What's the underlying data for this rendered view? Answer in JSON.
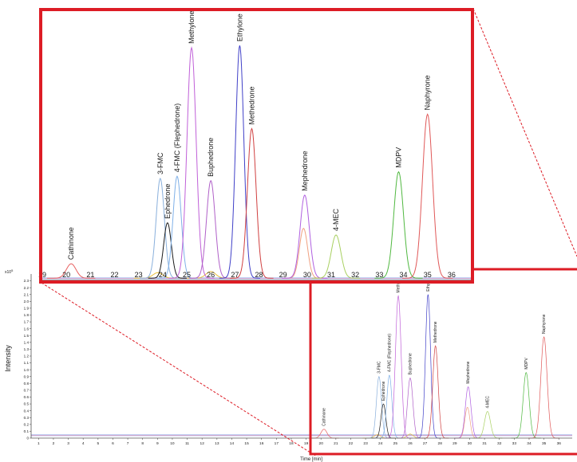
{
  "chart_data": {
    "type": "line",
    "chrom_chart": {
      "y_exponent_label": "x10",
      "y_exponent_power": "5",
      "ylabel": "Intensity",
      "xlabel": "Time [min]",
      "x_ticks": [
        "1",
        "2",
        "3",
        "4",
        "5",
        "6",
        "7",
        "8",
        "9",
        "10",
        "11",
        "12",
        "13",
        "14",
        "15",
        "16",
        "17",
        "18",
        "19",
        "20",
        "21",
        "22",
        "23",
        "24",
        "25",
        "26",
        "27",
        "28",
        "29",
        "30",
        "31",
        "32",
        "33",
        "34",
        "35",
        "36"
      ],
      "y_ticks": [
        "0",
        "0.1",
        "0.2",
        "0.3",
        "0.4",
        "0.5",
        "0.6",
        "0.7",
        "0.8",
        "0.9",
        "1.0",
        "1.1",
        "1.2",
        "1.3",
        "1.4",
        "1.5",
        "1.6",
        "1.7",
        "1.8",
        "1.9",
        "2.0",
        "2.1",
        "2.2",
        "2.3"
      ],
      "xlim": [
        0.5,
        36.9
      ],
      "ylim": [
        0,
        2.4
      ]
    },
    "zoom_chart": {
      "x_ticks": [
        "19",
        "20",
        "21",
        "22",
        "23",
        "24",
        "25",
        "26",
        "27",
        "28",
        "29",
        "30",
        "31",
        "32",
        "33",
        "34",
        "35",
        "36"
      ],
      "xlim": [
        19,
        36.8
      ]
    },
    "peaks": [
      {
        "label": "Cathinone",
        "rt": 20.2,
        "height": 0.13,
        "width": 0.2,
        "color": "#e86060"
      },
      {
        "label": "3-FMC",
        "rt": 23.9,
        "height": 0.9,
        "width": 0.17,
        "color": "#8ab0dc"
      },
      {
        "label": "Ephedrone",
        "rt": 24.2,
        "height": 0.5,
        "width": 0.16,
        "color": "#1a1a1a"
      },
      {
        "label": "4-FMC (Flephedrone)",
        "rt": 24.6,
        "height": 0.92,
        "width": 0.17,
        "color": "#7fb0e8"
      },
      {
        "label": "Methylone",
        "rt": 25.2,
        "height": 2.08,
        "width": 0.19,
        "color": "#c060d8"
      },
      {
        "label": "Buphedrone",
        "rt": 26.0,
        "height": 0.88,
        "width": 0.18,
        "color": "#b060c8"
      },
      {
        "label": "Ethylone",
        "rt": 27.2,
        "height": 2.1,
        "width": 0.17,
        "color": "#4040c8"
      },
      {
        "label": "Methedrone",
        "rt": 27.7,
        "height": 1.35,
        "width": 0.18,
        "color": "#d04040"
      },
      {
        "label": "Mephedrone",
        "rt": 29.9,
        "height": 0.75,
        "width": 0.19,
        "color": "#b060e0"
      },
      {
        "label": "4-MEC",
        "rt": 31.2,
        "height": 0.39,
        "width": 0.2,
        "color": "#a8d060"
      },
      {
        "label": "MDPV",
        "rt": 33.8,
        "height": 0.96,
        "width": 0.2,
        "color": "#50b840"
      },
      {
        "label": "Naphyrone",
        "rt": 35.0,
        "height": 1.48,
        "width": 0.21,
        "color": "#e05858"
      }
    ],
    "secondary_peaks": [
      {
        "rt": 29.85,
        "height": 0.45,
        "width": 0.17,
        "color": "#f0a080"
      },
      {
        "rt": 26.0,
        "height": 0.06,
        "width": 0.2,
        "color": "#e8c040"
      },
      {
        "rt": 23.8,
        "height": 0.05,
        "width": 0.2,
        "color": "#e8c040"
      }
    ],
    "baseline_colors": [
      "#8888dd",
      "#dd88aa",
      "#88aaee"
    ],
    "accent_color": "#dd1c25"
  }
}
